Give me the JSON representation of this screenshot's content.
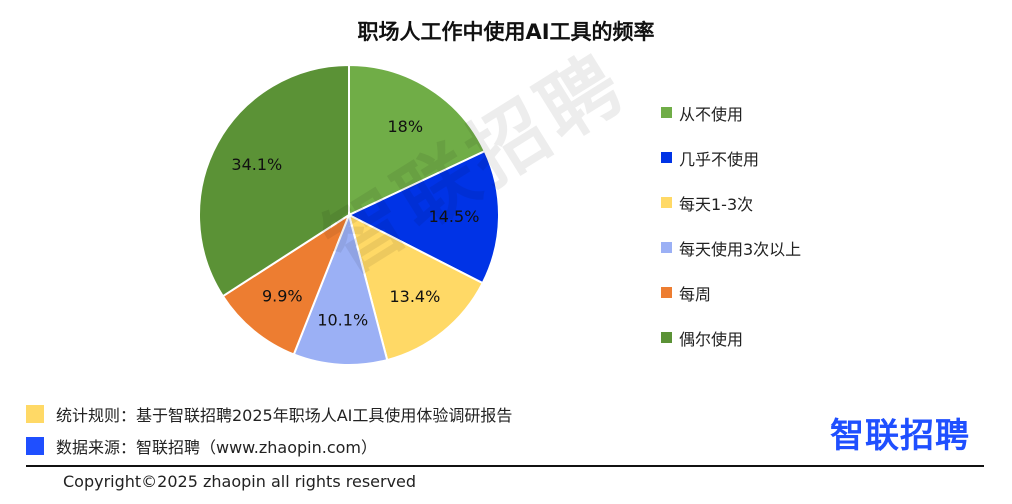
{
  "title": "职场人工作中使用AI工具的频率",
  "chart_data": {
    "type": "pie",
    "title": "职场人工作中使用AI工具的频率",
    "slices": [
      {
        "label": "从不使用",
        "value": 18,
        "display": "18%",
        "color": "#70ad47"
      },
      {
        "label": "几乎不使用",
        "value": 14.5,
        "display": "14.5%",
        "color": "#0033e6"
      },
      {
        "label": "每天1-3次",
        "value": 13.4,
        "display": "13.4%",
        "color": "#ffd966"
      },
      {
        "label": "每天使用3次以上",
        "value": 10.1,
        "display": "10.1%",
        "color": "#9bb0f5"
      },
      {
        "label": "每周",
        "value": 9.9,
        "display": "9.9%",
        "color": "#ed7d31"
      },
      {
        "label": "偶尔使用",
        "value": 34.1,
        "display": "34.1%",
        "color": "#5b9236"
      }
    ],
    "legend_position": "right"
  },
  "watermark": "智联招聘",
  "footnotes": [
    {
      "text": "统计规则：基于智联招聘2025年职场人AI工具使用体验调研报告",
      "color": "#ffd966"
    },
    {
      "text": "数据来源：智联招聘（www.zhaopin.com）",
      "color": "#1f4fff"
    }
  ],
  "brand": "智联招聘",
  "copyright": "Copyright©2025 zhaopin all rights reserved"
}
